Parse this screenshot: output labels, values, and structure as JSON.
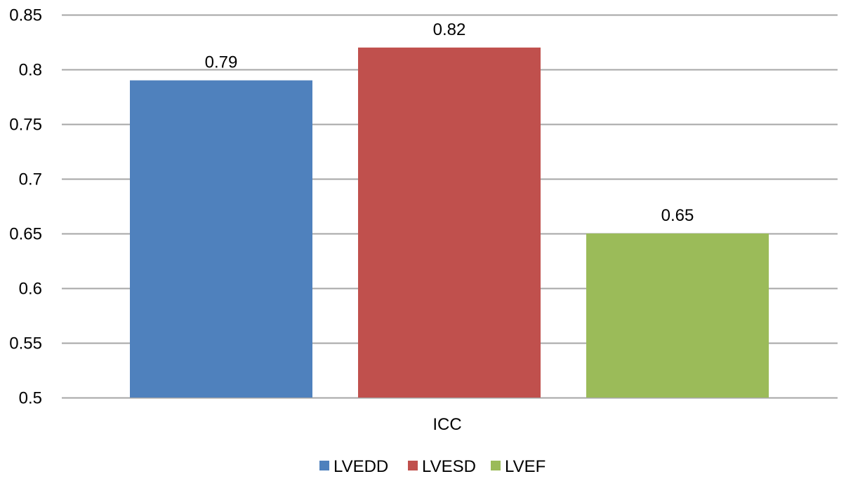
{
  "chart_data": {
    "type": "bar",
    "categories": [
      "ICC"
    ],
    "series": [
      {
        "name": "LVEDD",
        "values": [
          0.79
        ],
        "color": "#4F81BD",
        "data_label": "0.79"
      },
      {
        "name": "LVESD",
        "values": [
          0.82
        ],
        "color": "#C0504D",
        "data_label": "0.82"
      },
      {
        "name": "LVEF",
        "values": [
          0.65
        ],
        "color": "#9BBB59",
        "data_label": "0.65"
      }
    ],
    "title": "",
    "xlabel": "",
    "ylabel": "",
    "ylim": [
      0.5,
      0.85
    ],
    "y_ticks": [
      0.5,
      0.55,
      0.6,
      0.65,
      0.7,
      0.75,
      0.8,
      0.85
    ],
    "y_tick_labels": [
      "0.5",
      "0.55",
      "0.6",
      "0.65",
      "0.7",
      "0.75",
      "0.8",
      "0.85"
    ],
    "grid": true,
    "gridline_color": "#A6A6A6",
    "legend_position": "bottom"
  }
}
